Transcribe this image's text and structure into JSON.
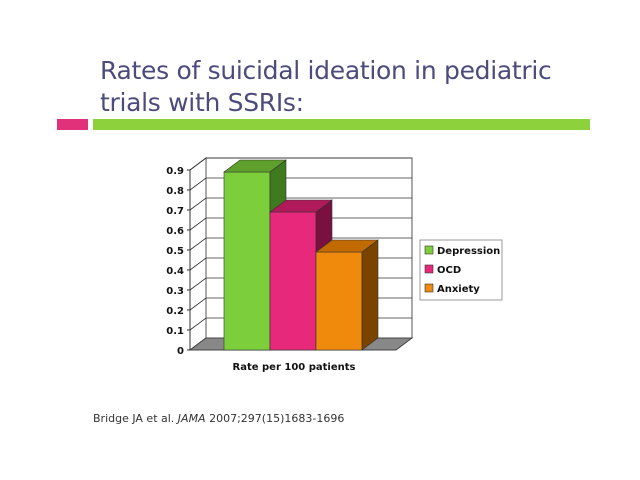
{
  "slide": {
    "title_line1": "Rates of suicidal ideation in pediatric",
    "title_line2": "trials with SSRIs:",
    "citation_prefix": "Bridge JA et al. ",
    "citation_journal": "JAMA",
    "citation_suffix": " 2007;297(15)1683-1696",
    "accent_colors": {
      "pink": "#e0317a",
      "green": "#8dd13d",
      "title": "#4b4b7c"
    }
  },
  "chart_data": {
    "type": "bar",
    "style": "3d",
    "categories": [
      "Rate per 100 patients"
    ],
    "xlabel": "Rate per 100 patients",
    "ylabel": "",
    "ylim": [
      0,
      0.9
    ],
    "yticks": [
      "0",
      "0.1",
      "0.2",
      "0.3",
      "0.4",
      "0.5",
      "0.6",
      "0.7",
      "0.8",
      "0.9"
    ],
    "grid": true,
    "legend_position": "right",
    "series": [
      {
        "name": "Depression",
        "values": [
          0.89
        ],
        "color": "#7ccf3a",
        "side": "#3f7a1e",
        "top": "#5fa02c"
      },
      {
        "name": "OCD",
        "values": [
          0.69
        ],
        "color": "#e8297b",
        "side": "#7a1040",
        "top": "#b01a5a"
      },
      {
        "name": "Anxiety",
        "values": [
          0.49
        ],
        "color": "#ef8a0c",
        "side": "#7a4400",
        "top": "#c06a00"
      }
    ]
  }
}
